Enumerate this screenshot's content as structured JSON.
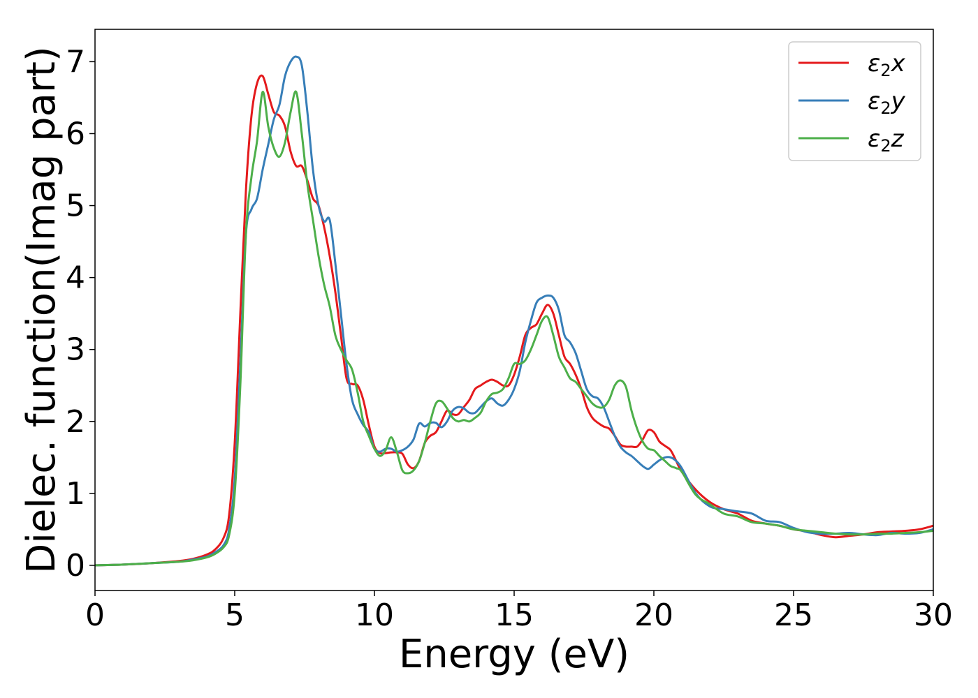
{
  "chart_data": {
    "type": "line",
    "xlabel": "Energy (eV)",
    "ylabel": "Dielec. function(Imag part)",
    "xlim": [
      0,
      30
    ],
    "ylim": [
      -0.35,
      7.45
    ],
    "xticks": [
      0,
      5,
      10,
      15,
      20,
      25,
      30
    ],
    "yticks": [
      0,
      1,
      2,
      3,
      4,
      5,
      6,
      7
    ],
    "grid": false,
    "legend_position": "top-right",
    "series": [
      {
        "name": "ε₂x",
        "legend_main": "ε",
        "legend_sub": "2",
        "legend_tail": "x",
        "color": "#e41a1c",
        "x": [
          0,
          1,
          2,
          3,
          3.5,
          4,
          4.3,
          4.6,
          4.8,
          5.0,
          5.2,
          5.4,
          5.6,
          5.8,
          6.0,
          6.2,
          6.4,
          6.6,
          6.8,
          7.0,
          7.2,
          7.4,
          7.6,
          7.8,
          8.0,
          8.2,
          8.4,
          8.6,
          8.8,
          9.0,
          9.2,
          9.4,
          9.6,
          9.8,
          10.0,
          10.2,
          10.4,
          10.6,
          10.8,
          11.0,
          11.2,
          11.4,
          11.6,
          11.8,
          12.0,
          12.2,
          12.4,
          12.6,
          12.8,
          13.0,
          13.2,
          13.4,
          13.6,
          13.8,
          14.0,
          14.2,
          14.4,
          14.6,
          14.8,
          15.0,
          15.2,
          15.4,
          15.6,
          15.8,
          16.0,
          16.2,
          16.4,
          16.6,
          16.8,
          17.0,
          17.2,
          17.4,
          17.6,
          17.8,
          18.0,
          18.2,
          18.4,
          18.6,
          18.8,
          19.0,
          19.2,
          19.4,
          19.6,
          19.8,
          20.0,
          20.2,
          20.4,
          20.6,
          20.8,
          21.0,
          21.5,
          22.0,
          22.5,
          23.0,
          23.5,
          24.0,
          24.5,
          25.0,
          25.5,
          26.0,
          26.5,
          27.0,
          27.5,
          28.0,
          28.5,
          29.0,
          29.5,
          30.0
        ],
        "y": [
          0.0,
          0.01,
          0.03,
          0.06,
          0.09,
          0.15,
          0.22,
          0.38,
          0.7,
          1.7,
          3.5,
          5.2,
          6.25,
          6.7,
          6.8,
          6.55,
          6.3,
          6.25,
          6.1,
          5.75,
          5.55,
          5.55,
          5.35,
          5.1,
          5.0,
          4.7,
          4.3,
          3.8,
          3.2,
          2.6,
          2.52,
          2.5,
          2.3,
          1.95,
          1.65,
          1.56,
          1.56,
          1.57,
          1.57,
          1.55,
          1.4,
          1.35,
          1.45,
          1.7,
          1.8,
          1.85,
          2.0,
          2.15,
          2.1,
          2.1,
          2.2,
          2.3,
          2.45,
          2.5,
          2.55,
          2.58,
          2.55,
          2.5,
          2.5,
          2.65,
          2.9,
          3.2,
          3.3,
          3.35,
          3.5,
          3.62,
          3.5,
          3.2,
          2.9,
          2.8,
          2.65,
          2.45,
          2.2,
          2.05,
          1.98,
          1.93,
          1.9,
          1.8,
          1.68,
          1.65,
          1.65,
          1.65,
          1.75,
          1.88,
          1.85,
          1.72,
          1.66,
          1.6,
          1.45,
          1.3,
          1.05,
          0.88,
          0.78,
          0.72,
          0.62,
          0.58,
          0.55,
          0.5,
          0.47,
          0.42,
          0.39,
          0.41,
          0.43,
          0.46,
          0.47,
          0.48,
          0.5,
          0.55
        ]
      },
      {
        "name": "ε₂y",
        "legend_main": "ε",
        "legend_sub": "2",
        "legend_tail": "y",
        "color": "#377eb8",
        "x": [
          0,
          1,
          2,
          3,
          3.5,
          4,
          4.3,
          4.6,
          4.8,
          5.0,
          5.2,
          5.4,
          5.6,
          5.8,
          6.0,
          6.2,
          6.4,
          6.6,
          6.8,
          7.0,
          7.2,
          7.4,
          7.6,
          7.8,
          8.0,
          8.2,
          8.4,
          8.6,
          8.8,
          9.0,
          9.2,
          9.4,
          9.6,
          9.8,
          10.0,
          10.2,
          10.4,
          10.6,
          10.8,
          11.0,
          11.2,
          11.4,
          11.6,
          11.8,
          12.0,
          12.2,
          12.4,
          12.6,
          12.8,
          13.0,
          13.2,
          13.4,
          13.6,
          13.8,
          14.0,
          14.2,
          14.4,
          14.6,
          14.8,
          15.0,
          15.2,
          15.4,
          15.6,
          15.8,
          16.0,
          16.2,
          16.4,
          16.6,
          16.8,
          17.0,
          17.2,
          17.4,
          17.6,
          17.8,
          18.0,
          18.2,
          18.4,
          18.6,
          18.8,
          19.0,
          19.2,
          19.4,
          19.6,
          19.8,
          20.0,
          20.2,
          20.4,
          20.6,
          20.8,
          21.0,
          21.5,
          22.0,
          22.5,
          23.0,
          23.5,
          24.0,
          24.5,
          25.0,
          25.5,
          26.0,
          26.5,
          27.0,
          27.5,
          28.0,
          28.5,
          29.0,
          29.5,
          30.0
        ],
        "y": [
          0.0,
          0.01,
          0.03,
          0.05,
          0.08,
          0.12,
          0.18,
          0.28,
          0.5,
          1.2,
          2.8,
          4.6,
          4.95,
          5.1,
          5.5,
          5.85,
          6.2,
          6.4,
          6.8,
          7.0,
          7.07,
          6.95,
          6.3,
          5.5,
          5.0,
          4.78,
          4.8,
          4.2,
          3.5,
          2.8,
          2.3,
          2.1,
          1.95,
          1.85,
          1.62,
          1.58,
          1.62,
          1.62,
          1.58,
          1.6,
          1.65,
          1.75,
          1.97,
          1.93,
          1.98,
          1.98,
          1.92,
          2.0,
          2.15,
          2.2,
          2.18,
          2.12,
          2.12,
          2.2,
          2.28,
          2.32,
          2.25,
          2.22,
          2.3,
          2.45,
          2.7,
          3.1,
          3.4,
          3.65,
          3.72,
          3.75,
          3.72,
          3.55,
          3.2,
          3.1,
          2.95,
          2.7,
          2.45,
          2.35,
          2.32,
          2.2,
          2.0,
          1.8,
          1.65,
          1.57,
          1.52,
          1.45,
          1.38,
          1.34,
          1.4,
          1.46,
          1.5,
          1.5,
          1.45,
          1.35,
          1.0,
          0.82,
          0.78,
          0.75,
          0.72,
          0.62,
          0.6,
          0.52,
          0.46,
          0.44,
          0.44,
          0.45,
          0.43,
          0.42,
          0.45,
          0.44,
          0.45,
          0.5
        ]
      },
      {
        "name": "ε₂z",
        "legend_main": "ε",
        "legend_sub": "2",
        "legend_tail": "z",
        "color": "#4daf4a",
        "x": [
          0,
          1,
          2,
          3,
          3.5,
          4,
          4.3,
          4.6,
          4.8,
          5.0,
          5.2,
          5.4,
          5.6,
          5.8,
          6.0,
          6.2,
          6.4,
          6.6,
          6.8,
          7.0,
          7.2,
          7.4,
          7.6,
          7.8,
          8.0,
          8.2,
          8.4,
          8.6,
          8.8,
          9.0,
          9.2,
          9.4,
          9.6,
          9.8,
          10.0,
          10.2,
          10.4,
          10.6,
          10.8,
          11.0,
          11.2,
          11.4,
          11.6,
          11.8,
          12.0,
          12.2,
          12.4,
          12.6,
          12.8,
          13.0,
          13.2,
          13.4,
          13.6,
          13.8,
          14.0,
          14.2,
          14.4,
          14.6,
          14.8,
          15.0,
          15.2,
          15.4,
          15.6,
          15.8,
          16.0,
          16.2,
          16.4,
          16.6,
          16.8,
          17.0,
          17.2,
          17.4,
          17.6,
          17.8,
          18.0,
          18.2,
          18.4,
          18.6,
          18.8,
          19.0,
          19.2,
          19.4,
          19.6,
          19.8,
          20.0,
          20.2,
          20.4,
          20.6,
          20.8,
          21.0,
          21.5,
          22.0,
          22.5,
          23.0,
          23.5,
          24.0,
          24.5,
          25.0,
          25.5,
          26.0,
          26.5,
          27.0,
          27.5,
          28.0,
          28.5,
          29.0,
          29.5,
          30.0
        ],
        "y": [
          0.0,
          0.01,
          0.03,
          0.05,
          0.07,
          0.11,
          0.16,
          0.25,
          0.42,
          1.0,
          2.5,
          4.6,
          5.4,
          5.9,
          6.58,
          6.1,
          5.8,
          5.68,
          5.88,
          6.3,
          6.58,
          6.0,
          5.3,
          4.8,
          4.3,
          3.9,
          3.6,
          3.2,
          3.0,
          2.85,
          2.72,
          2.4,
          2.0,
          1.8,
          1.62,
          1.52,
          1.6,
          1.78,
          1.58,
          1.32,
          1.28,
          1.32,
          1.45,
          1.7,
          2.0,
          2.25,
          2.28,
          2.18,
          2.05,
          2.0,
          2.02,
          2.0,
          2.05,
          2.12,
          2.28,
          2.38,
          2.4,
          2.45,
          2.6,
          2.8,
          2.8,
          2.85,
          3.0,
          3.2,
          3.4,
          3.45,
          3.2,
          2.9,
          2.75,
          2.6,
          2.55,
          2.45,
          2.35,
          2.25,
          2.2,
          2.2,
          2.3,
          2.5,
          2.57,
          2.48,
          2.15,
          1.9,
          1.72,
          1.62,
          1.6,
          1.52,
          1.45,
          1.38,
          1.35,
          1.3,
          0.98,
          0.85,
          0.72,
          0.68,
          0.6,
          0.58,
          0.55,
          0.5,
          0.48,
          0.46,
          0.44,
          0.43,
          0.43,
          0.44,
          0.44,
          0.45,
          0.46,
          0.48
        ]
      }
    ]
  }
}
